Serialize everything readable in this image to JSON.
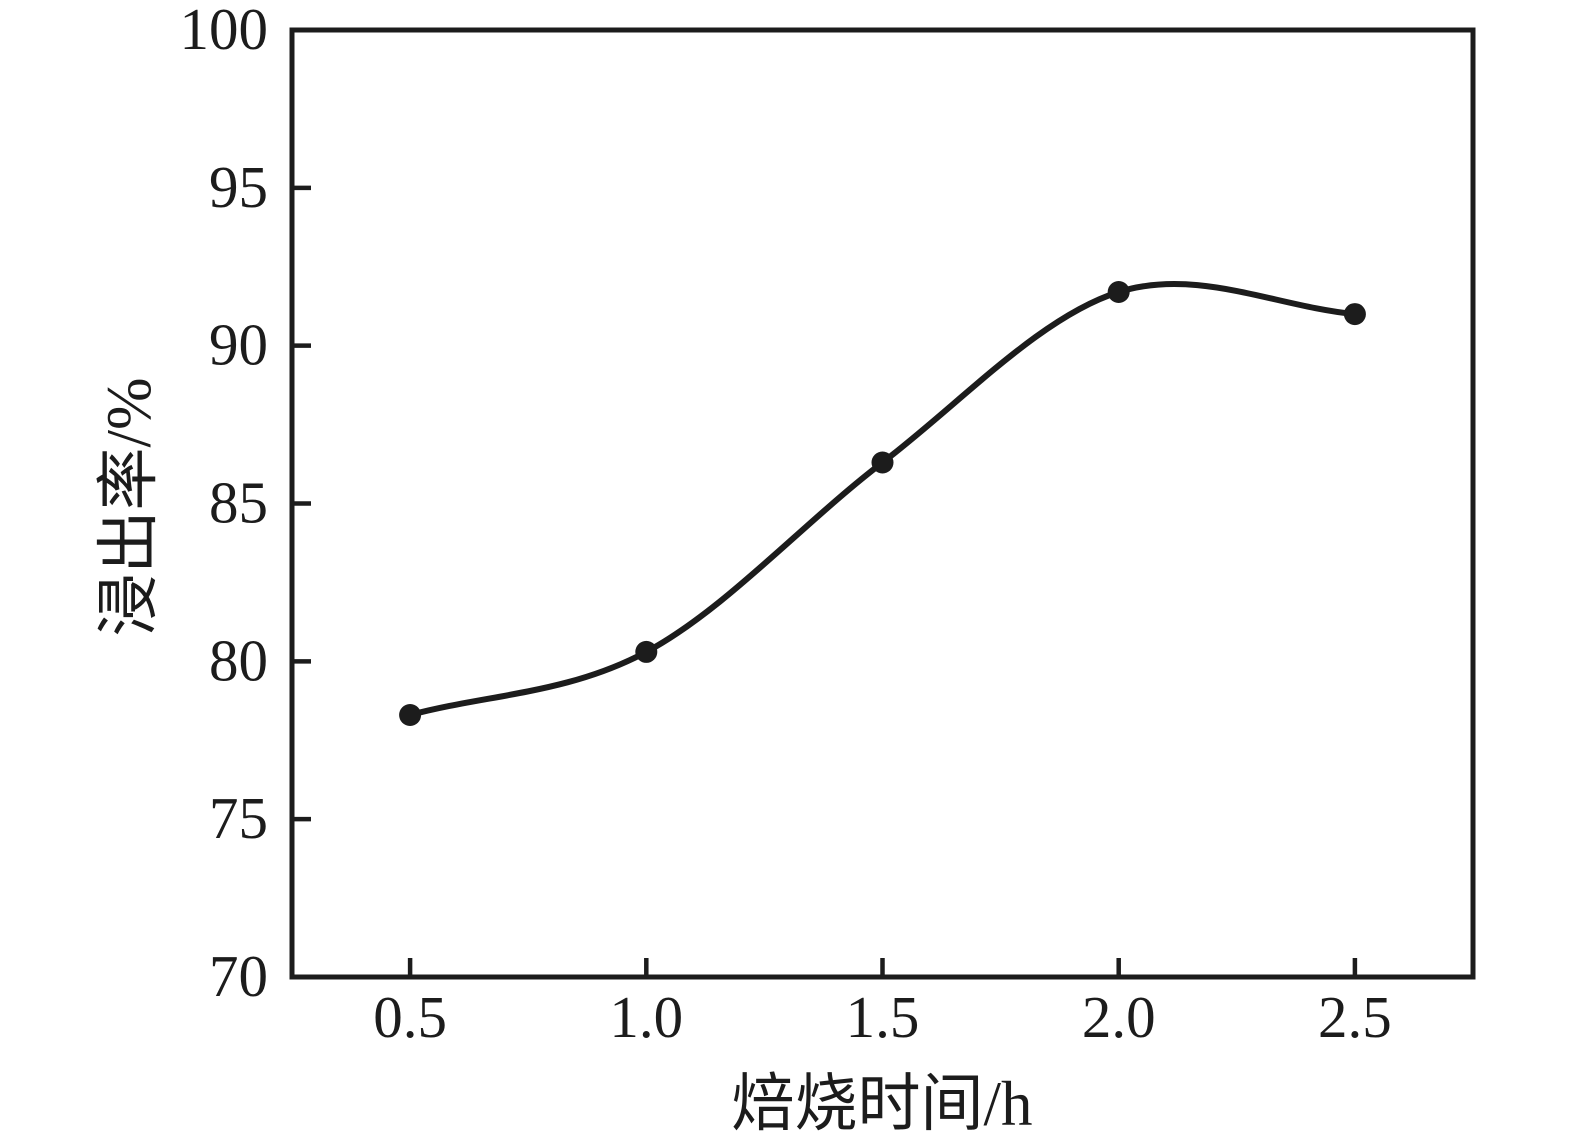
{
  "figure": {
    "background": "#ffffff",
    "ink_color": "#1c1c1c"
  },
  "chart_data": {
    "type": "line",
    "title": "",
    "xlabel": "焙烧时间/h",
    "ylabel": "浸出率/%",
    "series": [
      {
        "name": "浸出率",
        "x": [
          0.5,
          1.0,
          1.5,
          2.0,
          2.5
        ],
        "y": [
          78.3,
          80.3,
          86.3,
          91.7,
          91.0
        ]
      }
    ],
    "xlim": [
      0.25,
      2.75
    ],
    "ylim": [
      70,
      100
    ],
    "xticks": {
      "values": [
        0.5,
        1.0,
        1.5,
        2.0,
        2.5
      ],
      "labels": [
        "0.5",
        "1.0",
        "1.5",
        "2.0",
        "2.5"
      ]
    },
    "yticks": {
      "values": [
        70,
        75,
        80,
        85,
        90,
        95,
        100
      ],
      "labels": [
        "70",
        "75",
        "80",
        "85",
        "90",
        "95",
        "100"
      ]
    },
    "grid": false,
    "legend": "none",
    "smooth": true,
    "marker": "circle",
    "line_color": "#1c1c1c",
    "marker_color": "#1c1c1c"
  }
}
